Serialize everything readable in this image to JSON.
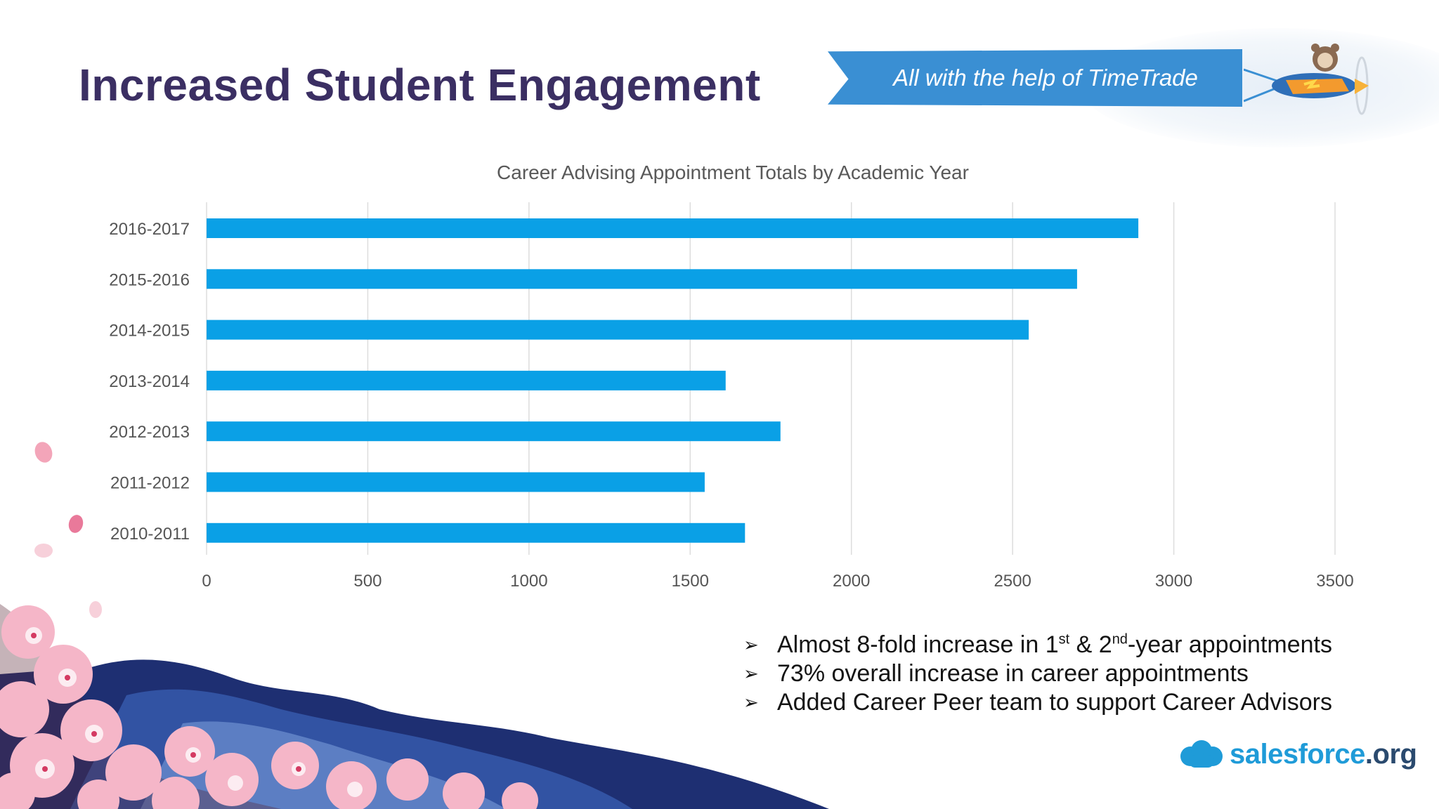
{
  "slide": {
    "title": "Increased Student Engagement",
    "banner_text": "All with the help of TimeTrade",
    "logo": {
      "name": "salesforce",
      "suffix": ".org"
    },
    "bullets": [
      {
        "pre": "Almost 8-fold increase in 1",
        "sup1": "st",
        "mid": " & 2",
        "sup2": "nd",
        "post": "-year appointments"
      },
      {
        "text": "73% overall increase in career appointments"
      },
      {
        "text": "Added Career Peer team to support Career Advisors"
      }
    ],
    "bullet_marker": "➢"
  },
  "colors": {
    "title": "#3b2f63",
    "bar": "#0aa0e6",
    "banner": "#3a8fd3",
    "grid": "#dddddd",
    "axis_text": "#555555"
  },
  "chart_data": {
    "type": "bar",
    "orientation": "horizontal",
    "title": "Career Advising Appointment Totals by Academic Year",
    "categories": [
      "2016-2017",
      "2015-2016",
      "2014-2015",
      "2013-2014",
      "2012-2013",
      "2011-2012",
      "2010-2011"
    ],
    "values": [
      2890,
      2700,
      2550,
      1610,
      1780,
      1545,
      1670
    ],
    "xlim": [
      0,
      3500
    ],
    "xticks": [
      "0",
      "500",
      "1000",
      "1500",
      "2000",
      "2500",
      "3000",
      "3500"
    ],
    "grid": "vertical",
    "xlabel": "",
    "ylabel": ""
  }
}
